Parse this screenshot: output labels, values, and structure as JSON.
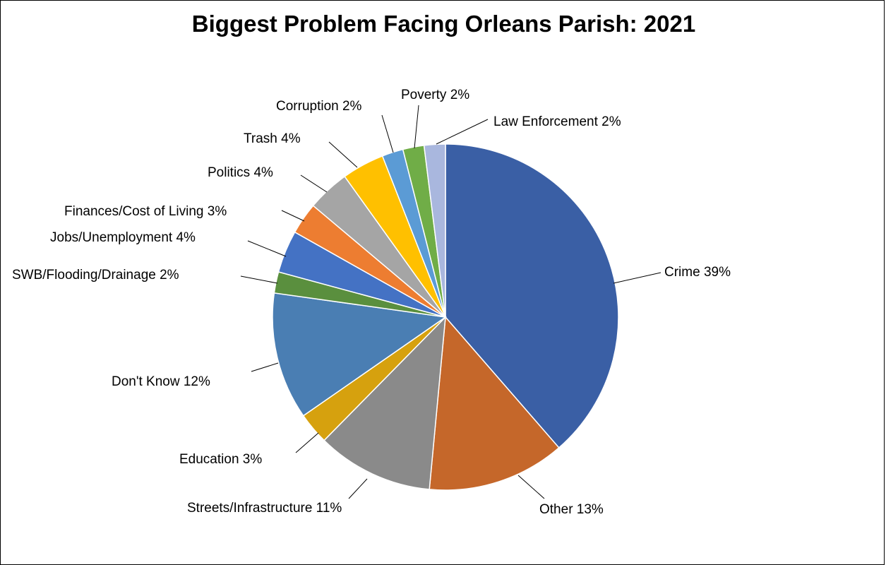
{
  "chart_data": {
    "type": "pie",
    "title": "Biggest Problem Facing Orleans Parish: 2021",
    "slices": [
      {
        "label": "Crime 39%",
        "value": 39,
        "color": "#3A5FA5"
      },
      {
        "label": "Other 13%",
        "value": 13,
        "color": "#C5672A"
      },
      {
        "label": "Streets/Infrastructure 11%",
        "value": 11,
        "color": "#8A8A8A"
      },
      {
        "label": "Education 3%",
        "value": 3,
        "color": "#D6A10E"
      },
      {
        "label": "Don't Know 12%",
        "value": 12,
        "color": "#4A7EB3"
      },
      {
        "label": "SWB/Flooding/Drainage 2%",
        "value": 2,
        "color": "#5A8F3E"
      },
      {
        "label": "Jobs/Unemployment 4%",
        "value": 4,
        "color": "#4472C4"
      },
      {
        "label": "Finances/Cost of Living 3%",
        "value": 3,
        "color": "#ED7D31"
      },
      {
        "label": "Politics 4%",
        "value": 4,
        "color": "#A5A5A5"
      },
      {
        "label": "Trash 4%",
        "value": 4,
        "color": "#FFC000"
      },
      {
        "label": "Corruption 2%",
        "value": 2,
        "color": "#5B9BD5"
      },
      {
        "label": "Poverty 2%",
        "value": 2,
        "color": "#70AD47"
      },
      {
        "label": "Law Enforcement 2%",
        "value": 2,
        "color": "#A9B7DE"
      }
    ],
    "start_angle": "12 o'clock",
    "direction": "clockwise",
    "legend": "none (labels on leader lines)"
  }
}
